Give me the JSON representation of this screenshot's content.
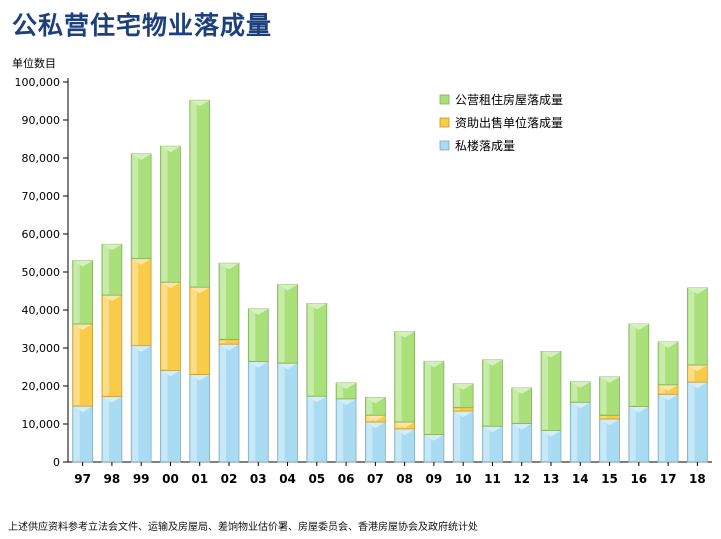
{
  "page": {
    "title": "公私营住宅物业落成量",
    "source_note": "上述供应资料参考立法会文件、运输及房屋局、差饷物业估价署、房屋委员会、香港房屋协会及政府统计处"
  },
  "colors": {
    "private": "#a9dcf3",
    "subsidized": "#f8cb48",
    "public_rental": "#a9e07a",
    "title": "#1c3f7e"
  },
  "chart_data": {
    "type": "bar",
    "stacked": true,
    "ylabel": "单位数目",
    "ylim": [
      0,
      100000
    ],
    "ytick_values": [
      0,
      10000,
      20000,
      30000,
      40000,
      50000,
      60000,
      70000,
      80000,
      90000,
      100000
    ],
    "ytick_labels": [
      "0",
      "10,000",
      "20,000",
      "30,000",
      "40,000",
      "50,000",
      "60,000",
      "70,000",
      "80,000",
      "90,000",
      "100,000"
    ],
    "legend_position": "top-right",
    "categories": [
      "97",
      "98",
      "99",
      "00",
      "01",
      "02",
      "03",
      "04",
      "05",
      "06",
      "07",
      "08",
      "09",
      "10",
      "11",
      "12",
      "13",
      "14",
      "15",
      "16",
      "17",
      "18"
    ],
    "series": [
      {
        "name": "私楼落成量",
        "color_key": "private",
        "values": [
          14700,
          17200,
          30600,
          24100,
          23000,
          31000,
          26400,
          26000,
          17300,
          16600,
          10500,
          8700,
          7200,
          13400,
          9400,
          10100,
          8300,
          15700,
          11300,
          14600,
          17800,
          21000
        ]
      },
      {
        "name": "资助出售单位落成量",
        "color_key": "subsidized",
        "values": [
          21600,
          26700,
          22900,
          23200,
          23000,
          1200,
          0,
          0,
          0,
          0,
          1800,
          1800,
          0,
          900,
          0,
          0,
          0,
          0,
          1000,
          0,
          2500,
          4500
        ]
      },
      {
        "name": "公营租住房屋落成量",
        "color_key": "public_rental",
        "values": [
          16700,
          13400,
          27600,
          35800,
          49200,
          20100,
          13900,
          20700,
          24400,
          4200,
          4700,
          23800,
          19300,
          6300,
          17500,
          9400,
          20800,
          5400,
          10100,
          21700,
          11300,
          20300
        ]
      }
    ]
  }
}
